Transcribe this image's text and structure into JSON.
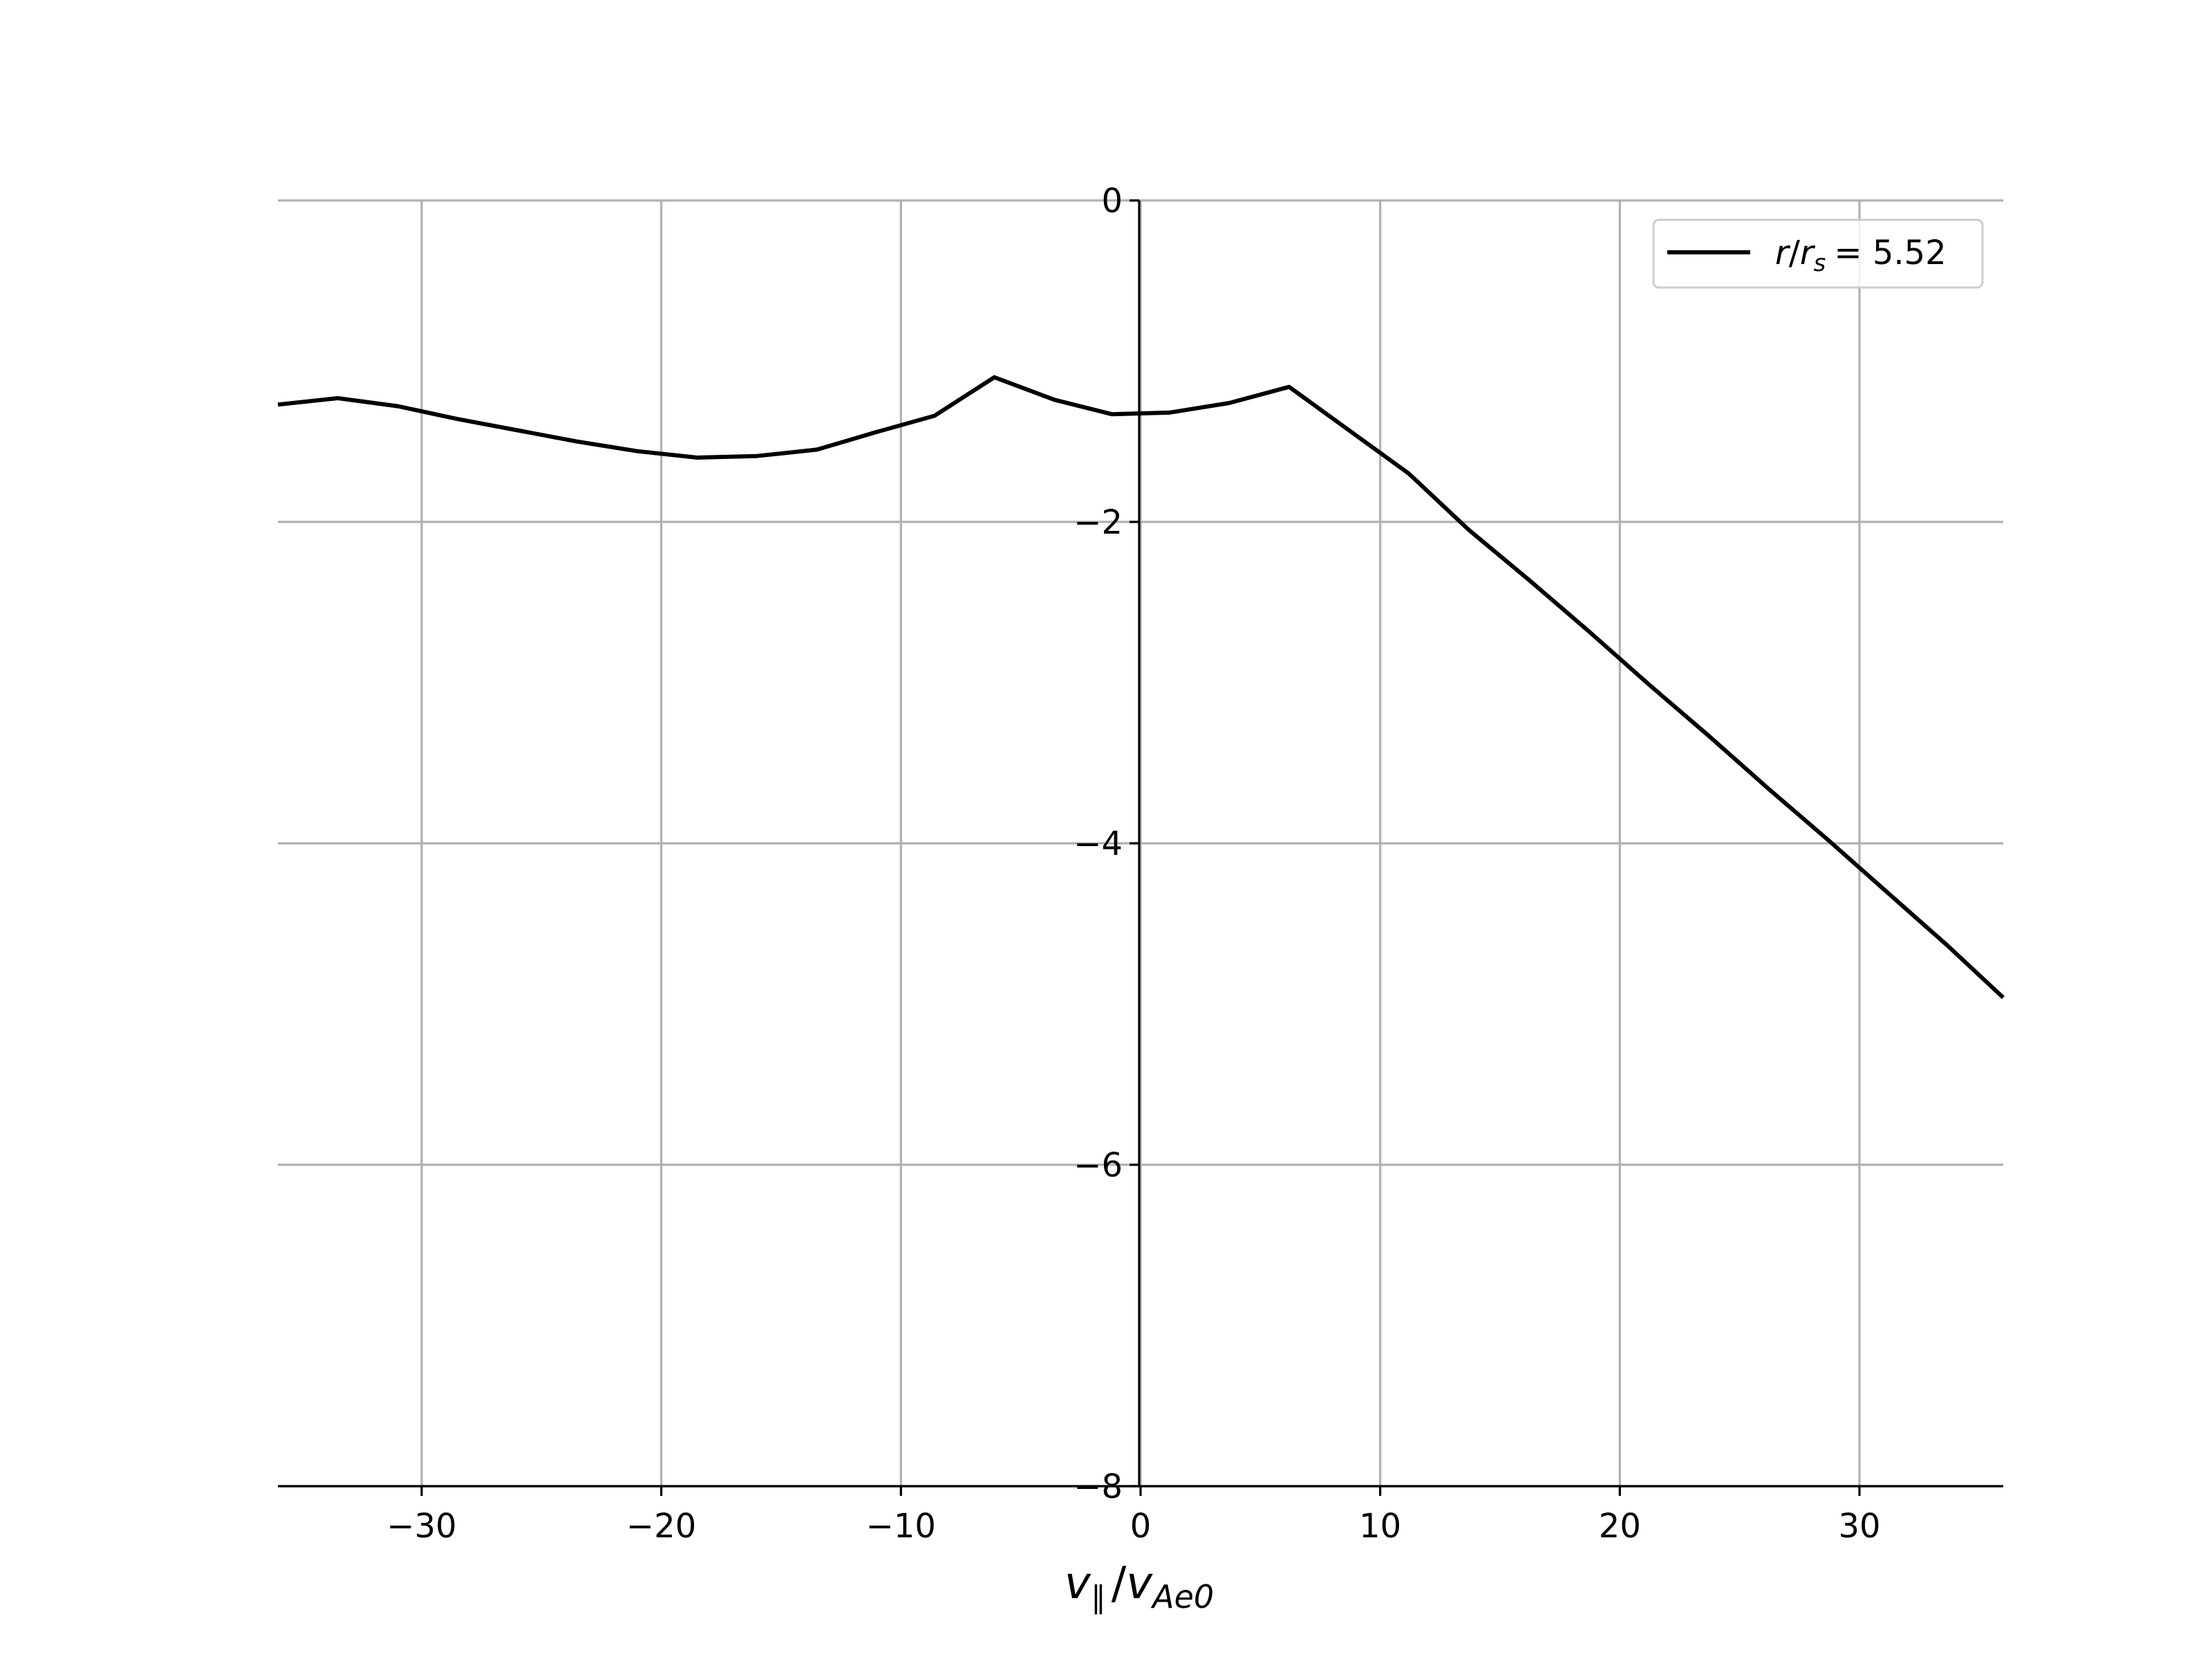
{
  "chart_data": {
    "type": "line",
    "title": "",
    "xlabel": "v_∥ / v_Ae0",
    "xlabel_parts": {
      "main": "v",
      "main_sub": "∥",
      "slash": "/",
      "den": "v",
      "den_sub": "Ae0"
    },
    "ylabel": "",
    "xlim": [
      -36,
      36
    ],
    "ylim": [
      -8,
      0
    ],
    "xticks": [
      -30,
      -20,
      -10,
      0,
      10,
      20,
      30
    ],
    "xtick_labels": [
      "−30",
      "−20",
      "−10",
      "0",
      "10",
      "20",
      "30"
    ],
    "yticks": [
      0,
      -2,
      -4,
      -6,
      -8
    ],
    "ytick_labels": [
      "0",
      "−2",
      "−4",
      "−6",
      "−8"
    ],
    "grid": true,
    "legend_position": "top-right",
    "series": [
      {
        "name": "r/r_s = 5.52",
        "legend_parts": {
          "r": "r",
          "slash": "/",
          "rs": "r",
          "rs_sub": "s",
          "eq": "= 5.52"
        },
        "color": "#000000",
        "x": [
          -36,
          -33.5,
          -31,
          -28.5,
          -26,
          -23.5,
          -21,
          -18.5,
          -16,
          -13.5,
          -11,
          -8.6,
          -6.1,
          -3.6,
          -1.2,
          1.2,
          3.7,
          6.2,
          8.7,
          11.2,
          13.7,
          16.2,
          18.7,
          21.2,
          23.7,
          26.2,
          28.7,
          31.2,
          33.7,
          36
        ],
        "y": [
          -1.27,
          -1.23,
          -1.28,
          -1.36,
          -1.43,
          -1.5,
          -1.56,
          -1.6,
          -1.59,
          -1.55,
          -1.44,
          -1.34,
          -1.1,
          -1.24,
          -1.33,
          -1.32,
          -1.26,
          -1.16,
          -1.43,
          -1.7,
          -2.05,
          -2.36,
          -2.68,
          -3.01,
          -3.33,
          -3.66,
          -3.98,
          -4.31,
          -4.64,
          -4.96
        ]
      }
    ]
  }
}
